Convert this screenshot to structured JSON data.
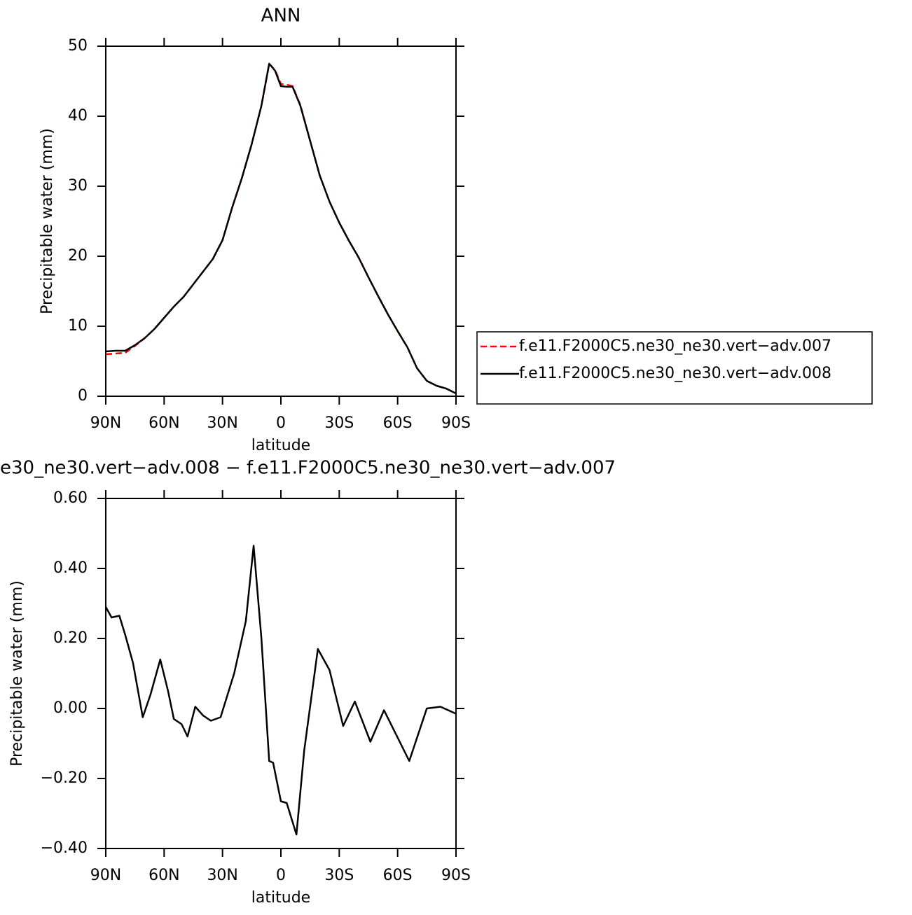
{
  "chart_data": [
    {
      "type": "line",
      "title": "ANN",
      "xlabel": "latitude",
      "ylabel": "Precipitable water (mm)",
      "xlim": [
        90,
        -90
      ],
      "ylim": [
        0,
        50
      ],
      "xticks": [
        {
          "value": 90,
          "label": "90N"
        },
        {
          "value": 60,
          "label": "60N"
        },
        {
          "value": 30,
          "label": "30N"
        },
        0,
        {
          "value": -30,
          "label": "30S"
        },
        {
          "value": -60,
          "label": "60S"
        },
        {
          "value": -90,
          "label": "90S"
        }
      ],
      "yticks": [
        0,
        10,
        20,
        30,
        40,
        50
      ],
      "legend": "outside-right",
      "x": [
        90,
        85,
        80,
        75,
        70,
        65,
        60,
        55,
        50,
        45,
        40,
        35,
        30,
        25,
        20,
        15,
        10,
        6,
        3,
        0,
        -3,
        -6,
        -10,
        -15,
        -20,
        -25,
        -30,
        -35,
        -40,
        -45,
        -50,
        -55,
        -60,
        -65,
        -70,
        -75,
        -80,
        -85,
        -90
      ],
      "series": [
        {
          "name": "f.e11.F2000C5.ne30_ne30.vert−adv.007",
          "color": "#ff0000",
          "dashed": true,
          "values": [
            6.0,
            6.1,
            6.2,
            7.2,
            8.3,
            9.6,
            11.2,
            12.8,
            14.2,
            16.0,
            17.8,
            19.6,
            22.3,
            27.0,
            31.2,
            36.0,
            41.5,
            47.5,
            46.6,
            44.6,
            44.5,
            44.3,
            41.6,
            36.5,
            31.5,
            27.8,
            24.8,
            22.2,
            19.8,
            17.0,
            14.3,
            11.7,
            9.3,
            7.0,
            4.0,
            2.2,
            1.5,
            1.1,
            0.4
          ]
        },
        {
          "name": "f.e11.F2000C5.ne30_ne30.vert−adv.008",
          "color": "#000000",
          "dashed": false,
          "values": [
            6.4,
            6.5,
            6.5,
            7.3,
            8.3,
            9.6,
            11.2,
            12.8,
            14.2,
            16.0,
            17.8,
            19.6,
            22.3,
            27.0,
            31.2,
            36.0,
            41.5,
            47.5,
            46.5,
            44.3,
            44.2,
            44.2,
            41.5,
            36.5,
            31.5,
            27.8,
            24.8,
            22.2,
            19.8,
            17.0,
            14.3,
            11.7,
            9.3,
            7.0,
            4.0,
            2.2,
            1.5,
            1.1,
            0.4
          ]
        }
      ]
    },
    {
      "type": "line",
      "title": "e30_ne30.vert−adv.008 − f.e11.F2000C5.ne30_ne30.vert−adv.007",
      "xlabel": "latitude",
      "ylabel": "Precipitable water (mm)",
      "xlim": [
        90,
        -90
      ],
      "ylim": [
        -0.4,
        0.6
      ],
      "xticks": [
        {
          "value": 90,
          "label": "90N"
        },
        {
          "value": 60,
          "label": "60N"
        },
        {
          "value": 30,
          "label": "30N"
        },
        0,
        {
          "value": -30,
          "label": "30S"
        },
        {
          "value": -60,
          "label": "60S"
        },
        {
          "value": -90,
          "label": "90S"
        }
      ],
      "yticks": [
        {
          "value": -0.4,
          "label": "−0.40"
        },
        {
          "value": -0.2,
          "label": "−0.20"
        },
        {
          "value": 0,
          "label": "0.00"
        },
        {
          "value": 0.2,
          "label": "0.20"
        },
        {
          "value": 0.4,
          "label": "0.40"
        },
        {
          "value": 0.6,
          "label": "0.60"
        }
      ],
      "x": [
        90,
        87,
        83,
        80,
        76,
        71,
        67,
        62,
        58,
        55,
        51,
        48,
        44,
        40,
        36,
        31,
        24,
        18,
        14,
        10,
        6,
        4,
        0,
        -3,
        -8,
        -12,
        -19,
        -25,
        -32,
        -38,
        -46,
        -53,
        -66,
        -75,
        -82,
        -90
      ],
      "series": [
        {
          "color": "#000000",
          "dashed": false,
          "values": [
            0.29,
            0.26,
            0.265,
            0.21,
            0.13,
            -0.025,
            0.04,
            0.14,
            0.05,
            -0.03,
            -0.045,
            -0.08,
            0.005,
            -0.02,
            -0.035,
            -0.025,
            0.1,
            0.25,
            0.465,
            0.2,
            -0.15,
            -0.155,
            -0.265,
            -0.27,
            -0.36,
            -0.12,
            0.17,
            0.11,
            -0.05,
            0.02,
            -0.095,
            -0.005,
            -0.15,
            0.0,
            0.005,
            -0.015
          ]
        }
      ]
    }
  ]
}
